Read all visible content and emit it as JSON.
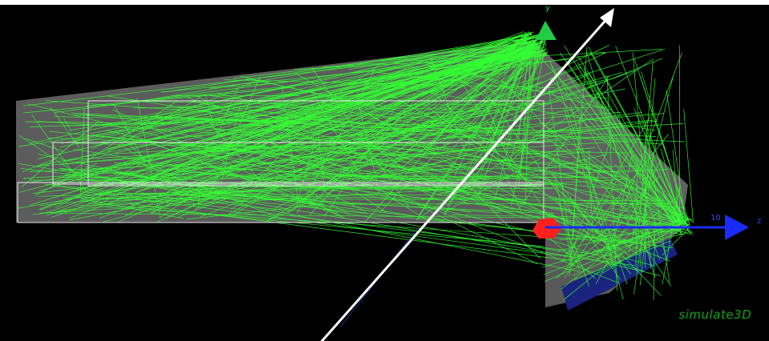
{
  "viewer": {
    "axes": {
      "y_label": "y",
      "z_label": "z",
      "z_tick": "10"
    },
    "watermark": "simulate3D",
    "colors": {
      "background": "#000000",
      "rays": "#33ff33",
      "geometry_fill": "#6a6a6a",
      "outline": "#ffffff",
      "y_axis": "#22cc44",
      "z_axis": "#1a2bff",
      "detector": "#1a237e",
      "source_marker": "#ff2020"
    },
    "ray_count": 520
  }
}
